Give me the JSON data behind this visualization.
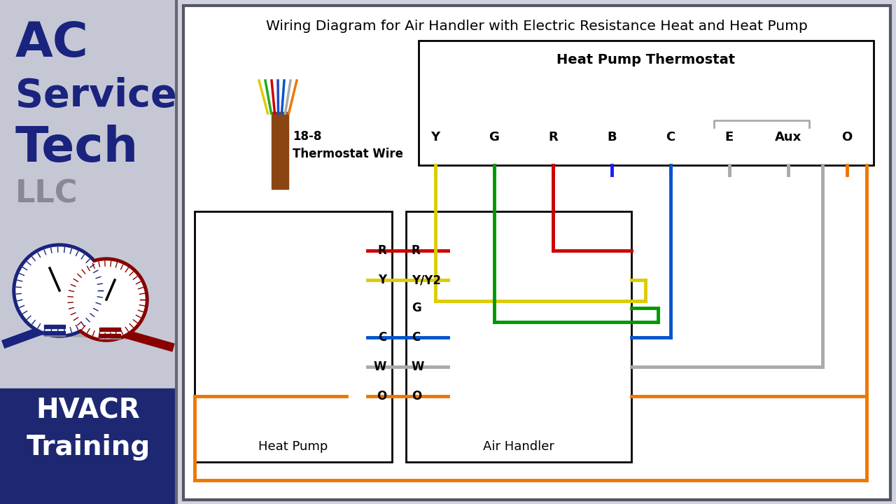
{
  "title": "Wiring Diagram for Air Handler with Electric Resistance Heat and Heat Pump",
  "sidebar_bg": "#2a3282",
  "sidebar_gray": "#c5c8d4",
  "sidebar_title_color": "#1a237e",
  "sidebar_llc_color": "#888899",
  "sidebar_bottom_bg": "#1e2872",
  "sidebar_bottom_text_color": "#ffffff",
  "main_bg": "#d0d3df",
  "diagram_bg": "#ffffff",
  "diagram_border": "#555566",
  "thermostat_box_title": "Heat Pump Thermostat",
  "thermostat_terminals": [
    "Y",
    "G",
    "R",
    "B",
    "C",
    "E",
    "Aux",
    "O"
  ],
  "wire_bundle_label1": "18-8",
  "wire_bundle_label2": "Thermostat Wire",
  "heat_pump_label": "Heat Pump",
  "air_handler_label": "Air Handler",
  "hp_terminals": [
    "R",
    "Y",
    "C",
    "W",
    "O"
  ],
  "ah_terminals": [
    "R",
    "Y/Y2",
    "G",
    "C",
    "W",
    "O"
  ],
  "wc_R": "#cc0000",
  "wc_Y": "#ddcc00",
  "wc_G": "#009900",
  "wc_B": "#0055cc",
  "wc_C": "#0055cc",
  "wc_W": "#aaaaaa",
  "wc_O": "#ee7700",
  "wc_brown": "#8B4513",
  "lw": 3.5
}
